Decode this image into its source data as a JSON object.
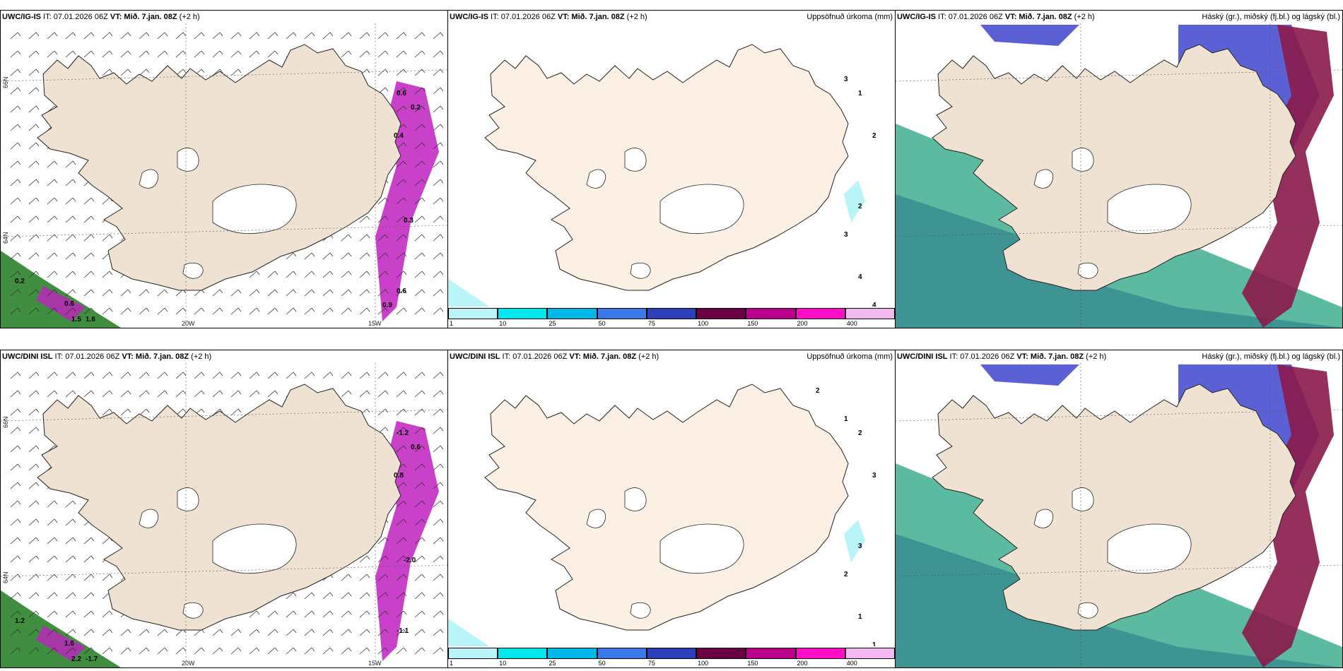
{
  "panels": [
    {
      "title_bold": "UWC/IG-IS",
      "title_rest": " IT: 07.01.2026 06Z ",
      "vt_bold": "VT: Mið. 7.jan. 08Z",
      "lead": " (+2 h)",
      "right_title": "",
      "type": "wind",
      "labels": [
        "0.2",
        "0.6",
        "0.4",
        "0.2",
        "0.6",
        "0.3",
        "0.6",
        "1.6",
        "1.5",
        "0.9"
      ]
    },
    {
      "title_bold": "UWC/IG-IS",
      "title_rest": " IT: 07.01.2026 06Z ",
      "vt_bold": "VT: Mið. 7.jan. 08Z",
      "lead": " (+2 h)",
      "right_title": "Uppsöfnuð úrkoma (mm)",
      "type": "precip",
      "labels": [
        "1",
        "2",
        "2",
        "3",
        "4",
        "4",
        "3"
      ]
    },
    {
      "title_bold": "UWC/IG-IS",
      "title_rest": " IT: 07.01.2026 06Z ",
      "vt_bold": "VT: Mið. 7.jan. 08Z",
      "lead": " (+2 h)",
      "right_title": "Háský (gr.), miðský (fj.bl.) og lágský (bl.)",
      "type": "cloud",
      "labels": []
    },
    {
      "title_bold": "UWC/DINI ISL",
      "title_rest": " IT: 07.01.2026 06Z ",
      "vt_bold": "VT: Mið. 7.jan. 08Z",
      "lead": " (+2 h)",
      "right_title": "",
      "type": "wind",
      "labels": [
        "1.2",
        "1.6",
        "0.8",
        "0.6",
        "-1.2",
        "-2.0",
        "-1.1",
        "-1.7",
        "2.2"
      ]
    },
    {
      "title_bold": "UWC/DINI ISL",
      "title_rest": " IT: 07.01.2026 06Z ",
      "vt_bold": "VT: Mið. 7.jan. 08Z",
      "lead": " (+2 h)",
      "right_title": "Uppsöfnuð úrkoma (mm)",
      "type": "precip",
      "labels": [
        "2",
        "3",
        "3",
        "2",
        "1",
        "1",
        "1",
        "2"
      ]
    },
    {
      "title_bold": "UWC/DINI ISL",
      "title_rest": " IT: 07.01.2026 06Z ",
      "vt_bold": "VT: Mið. 7.jan. 08Z",
      "lead": " (+2 h)",
      "right_title": "Háský (gr.), miðský (fj.bl.) og lágský (bl.)",
      "type": "cloud",
      "labels": []
    }
  ],
  "axis": {
    "lat_top": "66N",
    "lat_bottom": "64N",
    "lon_left": "20W",
    "lon_right": "15W"
  },
  "colorbar": {
    "ticks": [
      "1",
      "10",
      "25",
      "50",
      "75",
      "100",
      "150",
      "200",
      "400"
    ],
    "colors": [
      "#b8f4f8",
      "#00e7ee",
      "#00b8e8",
      "#3a78e8",
      "#2a3fb8",
      "#6a0042",
      "#b8008a",
      "#ff10c8",
      "#f2b8f0"
    ]
  },
  "colors": {
    "land": "#f0e2d2",
    "land_precip": "#fcf0e4",
    "ice": "#ffffff",
    "cloud_low": "#3fae90",
    "cloud_mid": "#4a4fd0",
    "cloud_high": "#8a1a4a",
    "precip_magenta": "#c020c0"
  }
}
